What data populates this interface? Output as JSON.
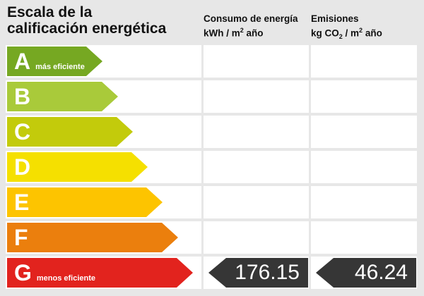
{
  "title": {
    "line1": "Escala de la",
    "line2": "calificación energética"
  },
  "columns": [
    {
      "id": "consumo",
      "title": "Consumo de energía",
      "unit_segments": [
        {
          "t": "kWh / m"
        },
        {
          "t": "2",
          "style": "sup"
        },
        {
          "t": " año"
        }
      ]
    },
    {
      "id": "emisiones",
      "title": "Emisiones",
      "unit_segments": [
        {
          "t": "kg CO"
        },
        {
          "t": "2",
          "style": "sub"
        },
        {
          "t": " / m"
        },
        {
          "t": "2",
          "style": "sup"
        },
        {
          "t": " año"
        }
      ]
    }
  ],
  "scale": {
    "rows": [
      {
        "letter": "A",
        "note": "más eficiente",
        "color": "#76a822",
        "arrow_width": 135
      },
      {
        "letter": "B",
        "note": "",
        "color": "#a9ca3a",
        "arrow_width": 157
      },
      {
        "letter": "C",
        "note": "",
        "color": "#c3cb0b",
        "arrow_width": 178
      },
      {
        "letter": "D",
        "note": "",
        "color": "#f5e000",
        "arrow_width": 199
      },
      {
        "letter": "E",
        "note": "",
        "color": "#fdc400",
        "arrow_width": 220
      },
      {
        "letter": "F",
        "note": "",
        "color": "#eb7f0d",
        "arrow_width": 242
      },
      {
        "letter": "G",
        "note": "menos eficiente",
        "color": "#e2231e",
        "arrow_width": 263
      }
    ]
  },
  "result": {
    "letter": "G",
    "consumo": "176.15",
    "emisiones": "46.24",
    "arrow_color": "#363636"
  },
  "palette": {
    "background": "#e7e7e7",
    "cell": "#ffffff",
    "text": "#111111"
  },
  "chart_data": {
    "type": "bar",
    "title": "Escala de la calificación energética",
    "categories": [
      "A",
      "B",
      "C",
      "D",
      "E",
      "F",
      "G"
    ],
    "category_annotations": {
      "A": "más eficiente",
      "G": "menos eficiente"
    },
    "bar_colors": [
      "#76a822",
      "#a9ca3a",
      "#c3cb0b",
      "#f5e000",
      "#fdc400",
      "#eb7f0d",
      "#e2231e"
    ],
    "bar_relative_lengths": [
      135,
      157,
      178,
      199,
      220,
      242,
      263
    ],
    "columns": [
      "Consumo de energía kWh/m² año",
      "Emisiones kg CO₂/m² año"
    ],
    "rating": "G",
    "values": {
      "consumo_kwh_m2_ano": 176.15,
      "emisiones_kg_co2_m2_ano": 46.24
    },
    "legend_position": "none",
    "grid": false
  }
}
